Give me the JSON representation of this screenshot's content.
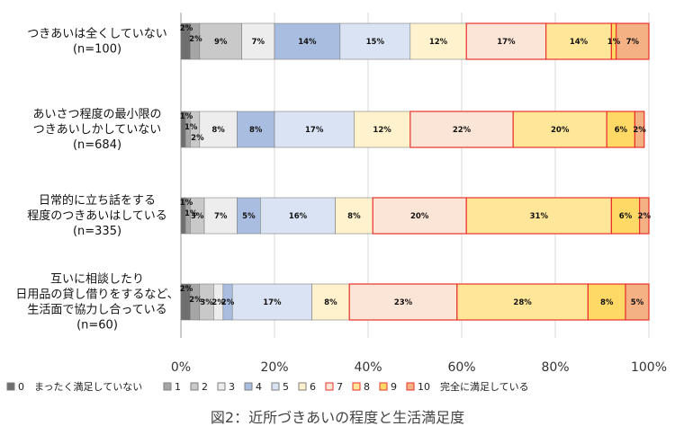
{
  "chart_data": {
    "type": "bar",
    "orientation": "horizontal",
    "stacked": true,
    "caption": "図2：近所づきあいの程度と生活満足度",
    "xlim": [
      0,
      100
    ],
    "ticks": [
      "0%",
      "20%",
      "40%",
      "60%",
      "80%",
      "100%"
    ],
    "grid": true,
    "legend_position": "bottom",
    "categories": [
      {
        "lines": [
          "つきあいは全くしていない",
          "(n=100)"
        ]
      },
      {
        "lines": [
          "あいさつ程度の最小限の",
          "つきあいしかしていない",
          "(n=684)"
        ]
      },
      {
        "lines": [
          "日常的に立ち話をする",
          "程度のつきあいはしている",
          "(n=335)"
        ]
      },
      {
        "lines": [
          "互いに相談したり",
          "日用品の貸し借りをするなど、",
          "生活面で協力し合っている",
          "(n=60)"
        ]
      }
    ],
    "series": [
      {
        "name": "0　まったく満足していない",
        "color": "#6f6f6f",
        "values": [
          2,
          1,
          1,
          2
        ]
      },
      {
        "name": "1",
        "color": "#a6a6a6",
        "values": [
          2,
          1,
          1,
          2
        ]
      },
      {
        "name": "2",
        "color": "#c9c9c9",
        "values": [
          9,
          2,
          3,
          3
        ]
      },
      {
        "name": "3",
        "color": "#ededed",
        "values": [
          7,
          8,
          7,
          2
        ]
      },
      {
        "name": "4",
        "color": "#a8bde0",
        "values": [
          14,
          8,
          5,
          2
        ]
      },
      {
        "name": "5",
        "color": "#dae3f3",
        "values": [
          15,
          17,
          16,
          17
        ]
      },
      {
        "name": "6",
        "color": "#fff2cc",
        "values": [
          12,
          12,
          8,
          8
        ]
      },
      {
        "name": "7",
        "color": "#fbe5d6",
        "values": [
          17,
          22,
          20,
          23
        ]
      },
      {
        "name": "8",
        "color": "#ffe699",
        "values": [
          14,
          20,
          31,
          28
        ]
      },
      {
        "name": "9",
        "color": "#ffd966",
        "values": [
          1,
          6,
          6,
          8
        ]
      },
      {
        "name": "10　完全に満足している",
        "color": "#f4b183",
        "values": [
          7,
          2,
          2,
          5
        ]
      }
    ],
    "segment_labels": [
      [
        "2%",
        "2%",
        "9%",
        "7%",
        "14%",
        "15%",
        "12%",
        "17%",
        "14%",
        "1%",
        "7%"
      ],
      [
        "1%",
        "1%",
        "2%",
        "8%",
        "8%",
        "17%",
        "12%",
        "22%",
        "20%",
        "6%",
        "2%"
      ],
      [
        "1%",
        "1%",
        "3%",
        "7%",
        "5%",
        "16%",
        "8%",
        "20%",
        "31%",
        "6%",
        "2%"
      ],
      [
        "2%",
        "2%",
        "3%",
        "2%",
        "2%",
        "17%",
        "8%",
        "23%",
        "28%",
        "8%",
        "5%"
      ]
    ],
    "highlight_outline_color": "#e8322b",
    "highlight_series": [
      7,
      8,
      9,
      10
    ]
  }
}
